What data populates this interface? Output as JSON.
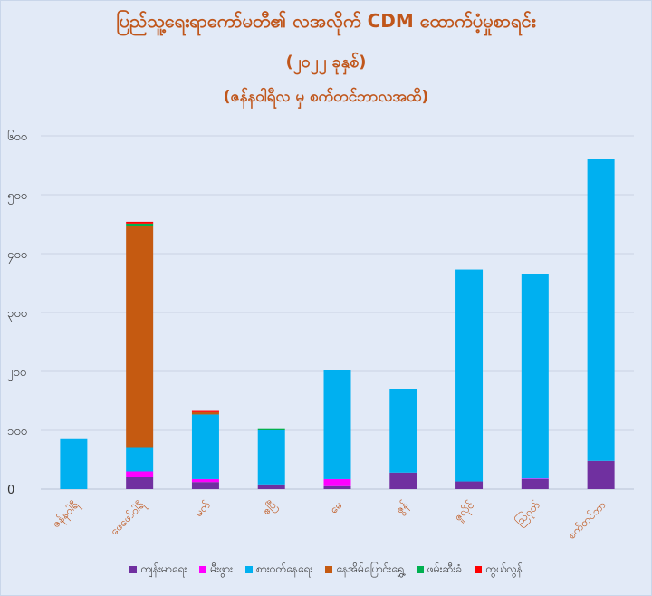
{
  "title": "ပြည်သူ့ရေးရာကော်မတီ၏ လအလိုက် CDM ထောက်ပံ့မှုစာရင်း",
  "subtitle": "(၂၀၂၂ ခုနှစ်)",
  "subtitle2": "(ဇန်နဝါရီလ မှ စက်တင်ဘာလအထိ)",
  "chart_data": {
    "type": "bar",
    "stacked": true,
    "categories": [
      "ဇန်နဝါရီ",
      "ဖေဖော်ဝါရီ",
      "မတ်",
      "ဧပြီ",
      "မေ",
      "ဇွန်",
      "ဇူလိုင်",
      "ဩဂုတ်",
      "စက်တင်ဘာ"
    ],
    "ylim": [
      0,
      600
    ],
    "yticks": [
      "0",
      "၁၀၀",
      "၂၀၀",
      "၃၀၀",
      "၄၀၀",
      "၅၀၀",
      "၆၀၀"
    ],
    "ytick_values": [
      0,
      100,
      200,
      300,
      400,
      500,
      600
    ],
    "grid": true,
    "legend_position": "bottom",
    "series": [
      {
        "name": "ကျန်းမာရေး",
        "color": "#7030a0",
        "values": [
          0,
          20,
          12,
          8,
          5,
          28,
          13,
          17,
          48
        ]
      },
      {
        "name": "မီးဖွား",
        "color": "#ff00ff",
        "values": [
          0,
          10,
          5,
          0,
          12,
          0,
          0,
          1,
          0
        ]
      },
      {
        "name": "စားဝတ်နေရေး",
        "color": "#00b0f0",
        "values": [
          85,
          40,
          110,
          92,
          186,
          142,
          360,
          348,
          512
        ]
      },
      {
        "name": "နေအိမ်ပြောင်းရွှေ့",
        "color": "#c55a11",
        "values": [
          0,
          377,
          4,
          0,
          0,
          0,
          0,
          0,
          0
        ]
      },
      {
        "name": "ဖမ်းဆီးခံ",
        "color": "#00b050",
        "values": [
          0,
          4,
          0,
          2,
          0,
          0,
          0,
          0,
          0
        ]
      },
      {
        "name": "ကွယ်လွန်",
        "color": "#ff0000",
        "values": [
          0,
          3,
          2,
          0,
          0,
          0,
          0,
          0,
          0
        ]
      }
    ]
  }
}
